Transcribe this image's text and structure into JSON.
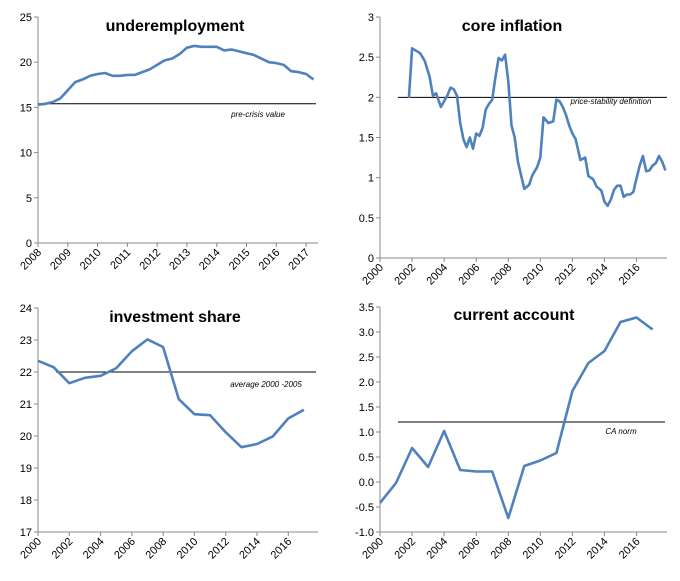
{
  "chart_data": [
    {
      "type": "line",
      "title": "underemployment",
      "x_ticks": [
        "2008",
        "2009",
        "2010",
        "2011",
        "2012",
        "2013",
        "2014",
        "2015",
        "2016",
        "2017"
      ],
      "y_ticks": [
        "0",
        "5",
        "10",
        "15",
        "20",
        "25"
      ],
      "xlim": [
        2008,
        2017.4
      ],
      "ylim": [
        0,
        25
      ],
      "series": [
        {
          "color": "#4F81BD",
          "x": [
            2008.0,
            2008.25,
            2008.5,
            2008.75,
            2009.0,
            2009.25,
            2009.5,
            2009.75,
            2010.0,
            2010.25,
            2010.5,
            2010.75,
            2011.0,
            2011.25,
            2011.5,
            2011.75,
            2012.0,
            2012.25,
            2012.5,
            2012.75,
            2013.0,
            2013.25,
            2013.5,
            2013.75,
            2014.0,
            2014.25,
            2014.5,
            2014.75,
            2015.0,
            2015.25,
            2015.5,
            2015.75,
            2016.0,
            2016.25,
            2016.5,
            2016.75,
            2017.0,
            2017.25
          ],
          "y": [
            15.3,
            15.4,
            15.6,
            16.0,
            16.9,
            17.8,
            18.1,
            18.5,
            18.7,
            18.8,
            18.5,
            18.5,
            18.6,
            18.6,
            18.9,
            19.2,
            19.7,
            20.2,
            20.4,
            20.9,
            21.6,
            21.8,
            21.7,
            21.7,
            21.7,
            21.3,
            21.4,
            21.2,
            21.0,
            20.8,
            20.4,
            20.0,
            19.9,
            19.7,
            19.0,
            18.9,
            18.7,
            18.1
          ]
        }
      ],
      "reference_line": {
        "label": "pre-crisis value",
        "value": 15.4
      }
    },
    {
      "type": "line",
      "title": "core inflation",
      "x_ticks": [
        "2000",
        "2002",
        "2004",
        "2006",
        "2008",
        "2010",
        "2012",
        "2014",
        "2016"
      ],
      "y_ticks": [
        "0",
        "0.5",
        "1",
        "1.5",
        "2",
        "2.5",
        "3"
      ],
      "xlim": [
        2000,
        2017.9
      ],
      "ylim": [
        0,
        3
      ],
      "series": [
        {
          "color": "#4F81BD",
          "x": [
            2001.8,
            2002.0,
            2002.5,
            2002.8,
            2003.1,
            2003.3,
            2003.5,
            2003.8,
            2004.0,
            2004.2,
            2004.4,
            2004.6,
            2004.8,
            2005.0,
            2005.2,
            2005.4,
            2005.6,
            2005.8,
            2006.0,
            2006.2,
            2006.4,
            2006.6,
            2006.8,
            2007.0,
            2007.2,
            2007.4,
            2007.6,
            2007.8,
            2008.0,
            2008.2,
            2008.4,
            2008.6,
            2008.8,
            2009.0,
            2009.3,
            2009.5,
            2009.8,
            2010.0,
            2010.2,
            2010.5,
            2010.8,
            2011.0,
            2011.2,
            2011.4,
            2011.6,
            2011.8,
            2012.0,
            2012.2,
            2012.5,
            2012.8,
            2013.0,
            2013.3,
            2013.5,
            2013.8,
            2014.0,
            2014.2,
            2014.4,
            2014.6,
            2014.8,
            2015.0,
            2015.2,
            2015.4,
            2015.6,
            2015.8,
            2016.0,
            2016.2,
            2016.4,
            2016.6,
            2016.8,
            2017.0,
            2017.2,
            2017.4,
            2017.6,
            2017.8
          ],
          "y": [
            1.99,
            2.61,
            2.55,
            2.45,
            2.25,
            2.02,
            2.05,
            1.88,
            1.95,
            2.02,
            2.12,
            2.1,
            2.02,
            1.68,
            1.48,
            1.38,
            1.5,
            1.36,
            1.55,
            1.52,
            1.62,
            1.85,
            1.92,
            1.97,
            2.25,
            2.49,
            2.46,
            2.53,
            2.2,
            1.65,
            1.5,
            1.2,
            1.03,
            0.86,
            0.91,
            1.03,
            1.13,
            1.25,
            1.75,
            1.68,
            1.7,
            1.97,
            1.95,
            1.88,
            1.78,
            1.65,
            1.55,
            1.48,
            1.22,
            1.25,
            1.02,
            0.98,
            0.89,
            0.84,
            0.7,
            0.65,
            0.73,
            0.85,
            0.9,
            0.9,
            0.76,
            0.79,
            0.79,
            0.82,
            0.99,
            1.15,
            1.27,
            1.08,
            1.09,
            1.15,
            1.18,
            1.27,
            1.2,
            1.09
          ]
        }
      ],
      "reference_line": {
        "label": "price-stability definition",
        "value": 2.0
      }
    },
    {
      "type": "line",
      "title": "investment share",
      "x_ticks": [
        "2000",
        "2002",
        "2004",
        "2006",
        "2008",
        "2010",
        "2012",
        "2014",
        "2016"
      ],
      "y_ticks": [
        "17",
        "18",
        "19",
        "20",
        "21",
        "22",
        "23",
        "24"
      ],
      "xlim": [
        2000,
        2017.9
      ],
      "ylim": [
        17,
        24
      ],
      "series": [
        {
          "color": "#4F81BD",
          "x": [
            2000,
            2001,
            2002,
            2003,
            2004,
            2005,
            2006,
            2007,
            2008,
            2009,
            2010,
            2011,
            2012,
            2013,
            2014,
            2015,
            2016,
            2017
          ],
          "y": [
            22.35,
            22.15,
            21.65,
            21.82,
            21.88,
            22.12,
            22.65,
            23.02,
            22.78,
            21.15,
            20.68,
            20.65,
            20.12,
            19.65,
            19.75,
            19.98,
            20.55,
            20.82
          ]
        }
      ],
      "reference_line": {
        "label": "average 2000 -2005",
        "value": 22.0
      }
    },
    {
      "type": "line",
      "title": "current account",
      "x_ticks": [
        "2000",
        "2002",
        "2004",
        "2006",
        "2008",
        "2010",
        "2012",
        "2014",
        "2016"
      ],
      "y_ticks": [
        "-1.0",
        "-0.5",
        "0.0",
        "0.5",
        "1.0",
        "1.5",
        "2.0",
        "2.5",
        "3.0",
        "3.5"
      ],
      "xlim": [
        2000,
        2017.9
      ],
      "ylim": [
        -1.0,
        3.5
      ],
      "series": [
        {
          "color": "#4F81BD",
          "x": [
            2000,
            2001,
            2002,
            2003,
            2004,
            2005,
            2006,
            2007,
            2008,
            2009,
            2010,
            2011,
            2012,
            2013,
            2014,
            2015,
            2016,
            2017
          ],
          "y": [
            -0.42,
            -0.02,
            0.68,
            0.3,
            1.02,
            0.24,
            0.21,
            0.21,
            -0.72,
            0.32,
            0.43,
            0.58,
            1.82,
            2.38,
            2.62,
            3.2,
            3.29,
            3.05
          ]
        }
      ],
      "reference_line": {
        "label": "CA norm",
        "value": 1.2
      }
    }
  ]
}
